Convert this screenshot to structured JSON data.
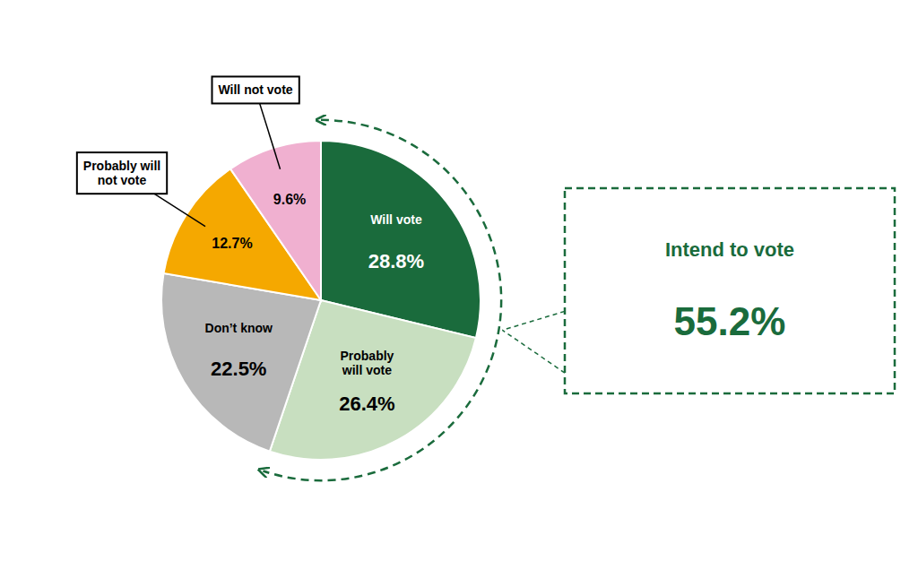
{
  "chart_data": {
    "type": "pie",
    "categories": [
      "Will vote",
      "Probably\nwill vote",
      "Don’t know",
      "Probably will\nnot vote",
      "Will not vote"
    ],
    "values": [
      28.8,
      26.4,
      22.5,
      12.7,
      9.6
    ],
    "value_labels": [
      "28.8%",
      "26.4%",
      "22.5%",
      "12.7%",
      "9.6%"
    ],
    "colors": [
      "#1a6b3c",
      "#c8dfc0",
      "#b8b8b8",
      "#f5a800",
      "#f0b0d0"
    ],
    "data_labels": true,
    "annotations": [
      {
        "text": "Intend to vote",
        "value": 55.2,
        "value_label": "55.2%",
        "color": "#1a6b3c"
      }
    ]
  }
}
